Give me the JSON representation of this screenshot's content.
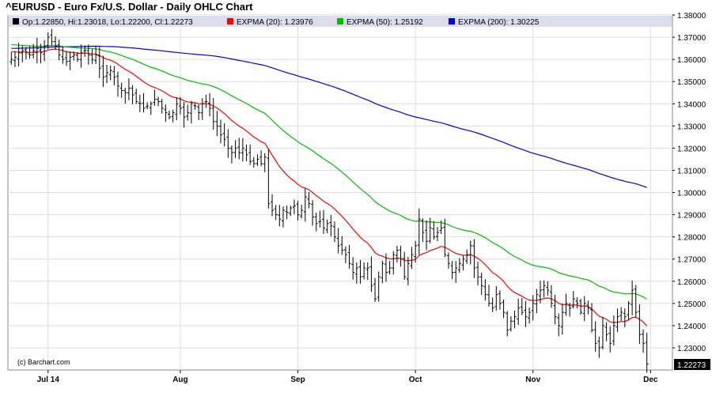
{
  "chart_data": {
    "type": "ohlc",
    "title": "^EURUSD - Euro Fx/U.S. Dollar - Daily OHLC Chart",
    "credit": "(c) Barchart.com",
    "legend": [
      {
        "label": "Op:1.22850, Hi:1.23018, Lo:1.22200, Cl:1.22273",
        "color": "#000000"
      },
      {
        "label": "EXPMA (20): 1.23976",
        "color": "#ff0000"
      },
      {
        "label": "EXPMA (50): 1.25192",
        "color": "#00bb00"
      },
      {
        "label": "EXPMA (200): 1.30225",
        "color": "#0000dd"
      }
    ],
    "ylim": [
      1.22,
      1.38
    ],
    "yticks": [
      "1.23000",
      "1.24000",
      "1.25000",
      "1.26000",
      "1.27000",
      "1.28000",
      "1.29000",
      "1.30000",
      "1.31000",
      "1.32000",
      "1.33000",
      "1.34000",
      "1.35000",
      "1.36000",
      "1.37000",
      "1.38000"
    ],
    "last_price": "1.22273",
    "x_labels": [
      {
        "label": "Jul 14",
        "bar": 10
      },
      {
        "label": "Aug",
        "bar": 46
      },
      {
        "label": "Sep",
        "bar": 78
      },
      {
        "label": "Oct",
        "bar": 110
      },
      {
        "label": "Nov",
        "bar": 142
      },
      {
        "label": "Dec",
        "bar": 174
      }
    ],
    "close": [
      1.36,
      1.361,
      1.363,
      1.364,
      1.363,
      1.362,
      1.364,
      1.365,
      1.363,
      1.366,
      1.37,
      1.368,
      1.366,
      1.362,
      1.36,
      1.359,
      1.361,
      1.362,
      1.36,
      1.363,
      1.364,
      1.362,
      1.36,
      1.362,
      1.356,
      1.352,
      1.354,
      1.355,
      1.352,
      1.348,
      1.346,
      1.345,
      1.347,
      1.344,
      1.341,
      1.34,
      1.338,
      1.339,
      1.34,
      1.342,
      1.341,
      1.338,
      1.336,
      1.334,
      1.336,
      1.34,
      1.338,
      1.334,
      1.336,
      1.34,
      1.339,
      1.336,
      1.34,
      1.341,
      1.338,
      1.332,
      1.33,
      1.326,
      1.324,
      1.32,
      1.318,
      1.32,
      1.318,
      1.32,
      1.317,
      1.314,
      1.313,
      1.315,
      1.313,
      1.316,
      1.295,
      1.292,
      1.29,
      1.288,
      1.292,
      1.291,
      1.293,
      1.294,
      1.29,
      1.292,
      1.298,
      1.295,
      1.289,
      1.286,
      1.287,
      1.284,
      1.286,
      1.285,
      1.28,
      1.276,
      1.274,
      1.272,
      1.268,
      1.264,
      1.266,
      1.262,
      1.266,
      1.266,
      1.258,
      1.252,
      1.262,
      1.268,
      1.264,
      1.266,
      1.272,
      1.274,
      1.27,
      1.262,
      1.268,
      1.272,
      1.276,
      1.288,
      1.282,
      1.278,
      1.284,
      1.28,
      1.282,
      1.284,
      1.272,
      1.268,
      1.264,
      1.266,
      1.268,
      1.27,
      1.272,
      1.276,
      1.266,
      1.262,
      1.258,
      1.254,
      1.25,
      1.248,
      1.254,
      1.25,
      1.246,
      1.238,
      1.242,
      1.244,
      1.248,
      1.246,
      1.244,
      1.246,
      1.25,
      1.254,
      1.256,
      1.258,
      1.256,
      1.25,
      1.244,
      1.24,
      1.246,
      1.25,
      1.248,
      1.252,
      1.25,
      1.246,
      1.25,
      1.248,
      1.238,
      1.232,
      1.23,
      1.24,
      1.236,
      1.232,
      1.24,
      1.244,
      1.246,
      1.244,
      1.25,
      1.256,
      1.246,
      1.236,
      1.232,
      1.22273
    ],
    "ema_20_end": "1.23976",
    "ema_50_end": "1.25192",
    "ema_200_end": "1.30225"
  }
}
